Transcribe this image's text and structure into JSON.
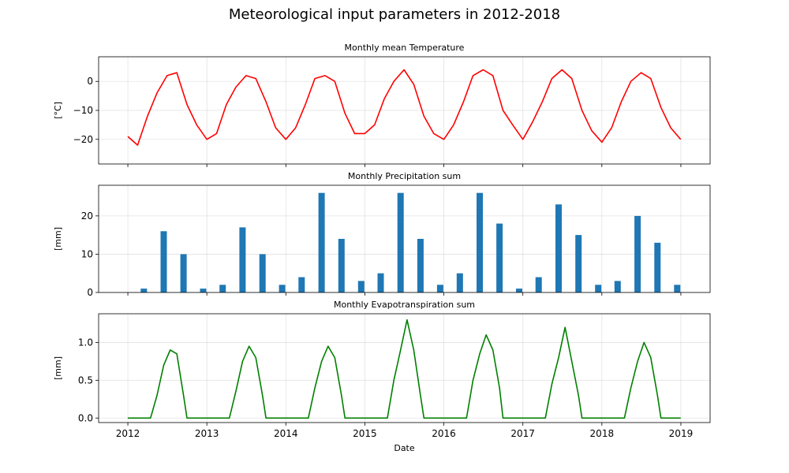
{
  "figure_title": "Meteorological input parameters in 2012-2018",
  "chart_data": [
    {
      "type": "line",
      "title": "Monthly mean Temperature",
      "ylabel": "[°C]",
      "xlabel": "",
      "color": "#ff0000",
      "x_range": [
        "2012-01-01",
        "2019-01-01"
      ],
      "ylim": [
        -28.5,
        8.5
      ],
      "yticks": [
        0,
        -10,
        -20
      ],
      "x_tick_labels": [],
      "grid": true,
      "x": [
        "2012-01-01",
        "2012-02-15",
        "2012-04-01",
        "2012-05-15",
        "2012-07-01",
        "2012-08-15",
        "2012-10-01",
        "2012-11-15",
        "2013-01-01",
        "2013-02-15",
        "2013-04-01",
        "2013-05-15",
        "2013-07-01",
        "2013-08-15",
        "2013-10-01",
        "2013-11-15",
        "2014-01-01",
        "2014-02-15",
        "2014-04-01",
        "2014-05-15",
        "2014-07-01",
        "2014-08-15",
        "2014-10-01",
        "2014-11-15",
        "2015-01-01",
        "2015-02-15",
        "2015-04-01",
        "2015-05-15",
        "2015-07-01",
        "2015-08-15",
        "2015-10-01",
        "2015-11-15",
        "2016-01-01",
        "2016-02-15",
        "2016-04-01",
        "2016-05-15",
        "2016-07-01",
        "2016-08-15",
        "2016-10-01",
        "2016-11-15",
        "2017-01-01",
        "2017-02-15",
        "2017-04-01",
        "2017-05-15",
        "2017-07-01",
        "2017-08-15",
        "2017-10-01",
        "2017-11-15",
        "2018-01-01",
        "2018-02-15",
        "2018-04-01",
        "2018-05-15",
        "2018-07-01",
        "2018-08-15",
        "2018-10-01",
        "2018-11-15",
        "2018-12-31"
      ],
      "y": [
        -19,
        -22,
        -12,
        -4,
        2,
        3,
        -8,
        -15,
        -20,
        -18,
        -8,
        -2,
        2,
        1,
        -7,
        -16,
        -20,
        -16,
        -8,
        1,
        2,
        0,
        -11,
        -18,
        -18,
        -15,
        -6,
        0,
        4,
        -1,
        -12,
        -18,
        -20,
        -15,
        -7,
        2,
        4,
        2,
        -10,
        -15,
        -20,
        -14,
        -7,
        1,
        4,
        1,
        -10,
        -17,
        -21,
        -16,
        -7,
        0,
        3,
        1,
        -9,
        -16,
        -20
      ]
    },
    {
      "type": "bar",
      "title": "Monthly Precipitation sum",
      "ylabel": "[mm]",
      "xlabel": "",
      "color": "#1f77b4",
      "x_range": [
        "2012-01-01",
        "2019-01-01"
      ],
      "ylim": [
        0,
        28
      ],
      "yticks": [
        0,
        10,
        20
      ],
      "x_tick_labels": [],
      "grid": true,
      "x": [
        "2012-03",
        "2012-06",
        "2012-09",
        "2012-12",
        "2013-03",
        "2013-06",
        "2013-09",
        "2013-12",
        "2014-03",
        "2014-06",
        "2014-09",
        "2014-12",
        "2015-03",
        "2015-06",
        "2015-09",
        "2015-12",
        "2016-03",
        "2016-06",
        "2016-09",
        "2016-12",
        "2017-03",
        "2017-06",
        "2017-09",
        "2017-12",
        "2018-03",
        "2018-06",
        "2018-09",
        "2018-12"
      ],
      "values": [
        1,
        16,
        10,
        1,
        2,
        17,
        10,
        2,
        4,
        26,
        14,
        3,
        5,
        26,
        14,
        2,
        5,
        26,
        18,
        1,
        4,
        23,
        15,
        2,
        3,
        20,
        13,
        2
      ]
    },
    {
      "type": "line",
      "title": "Monthly Evapotranspiration sum",
      "ylabel": "[mm]",
      "xlabel": "Date",
      "color": "#008000",
      "x_range": [
        "2012-01-01",
        "2019-01-01"
      ],
      "ylim": [
        -0.06,
        1.38
      ],
      "yticks": [
        0.0,
        0.5,
        1.0
      ],
      "x_tick_labels": [
        "2012",
        "2013",
        "2014",
        "2015",
        "2016",
        "2017",
        "2018",
        "2019"
      ],
      "grid": true,
      "x": [
        "2012-01-01",
        "2012-04-15",
        "2012-05-15",
        "2012-06-15",
        "2012-07-15",
        "2012-08-15",
        "2012-09-15",
        "2012-10-01",
        "2013-04-15",
        "2013-05-15",
        "2013-06-15",
        "2013-07-15",
        "2013-08-15",
        "2013-09-15",
        "2013-10-01",
        "2014-04-15",
        "2014-05-15",
        "2014-06-15",
        "2014-07-15",
        "2014-08-15",
        "2014-09-15",
        "2014-10-01",
        "2015-04-15",
        "2015-05-15",
        "2015-06-15",
        "2015-07-15",
        "2015-08-15",
        "2015-09-15",
        "2015-10-01",
        "2016-04-15",
        "2016-05-15",
        "2016-06-15",
        "2016-07-15",
        "2016-08-15",
        "2016-09-15",
        "2016-10-01",
        "2017-04-15",
        "2017-05-15",
        "2017-06-15",
        "2017-07-15",
        "2017-08-15",
        "2017-09-15",
        "2017-10-01",
        "2018-04-15",
        "2018-05-15",
        "2018-06-15",
        "2018-07-15",
        "2018-08-15",
        "2018-09-15",
        "2018-10-01",
        "2018-12-31"
      ],
      "y": [
        0,
        0,
        0.3,
        0.7,
        0.9,
        0.85,
        0.3,
        0,
        0,
        0.35,
        0.75,
        0.95,
        0.8,
        0.3,
        0,
        0,
        0.4,
        0.75,
        0.95,
        0.8,
        0.3,
        0,
        0,
        0.5,
        0.9,
        1.3,
        0.9,
        0.3,
        0,
        0,
        0.5,
        0.85,
        1.1,
        0.9,
        0.4,
        0,
        0,
        0.45,
        0.8,
        1.2,
        0.75,
        0.3,
        0,
        0,
        0.4,
        0.75,
        1.0,
        0.8,
        0.3,
        0,
        0
      ]
    }
  ]
}
